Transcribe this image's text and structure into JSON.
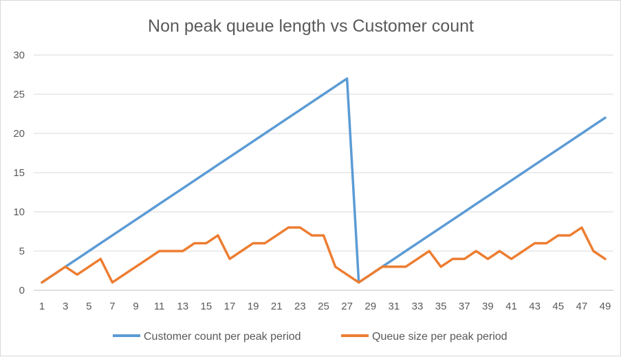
{
  "chart_data": {
    "type": "line",
    "title": "Non peak queue length vs Customer count",
    "xlabel": "",
    "ylabel": "",
    "x": [
      1,
      2,
      3,
      4,
      5,
      6,
      7,
      8,
      9,
      10,
      11,
      12,
      13,
      14,
      15,
      16,
      17,
      18,
      19,
      20,
      21,
      22,
      23,
      24,
      25,
      26,
      27,
      28,
      29,
      30,
      31,
      32,
      33,
      34,
      35,
      36,
      37,
      38,
      39,
      40,
      41,
      42,
      43,
      44,
      45,
      46,
      47,
      48,
      49
    ],
    "x_tick_labels": [
      "1",
      "3",
      "5",
      "7",
      "9",
      "11",
      "13",
      "15",
      "17",
      "19",
      "21",
      "23",
      "25",
      "27",
      "29",
      "31",
      "33",
      "35",
      "37",
      "39",
      "41",
      "43",
      "45",
      "47",
      "49"
    ],
    "ylim": [
      0,
      30
    ],
    "y_ticks": [
      0,
      5,
      10,
      15,
      20,
      25,
      30
    ],
    "grid": true,
    "legend_position": "bottom",
    "series": [
      {
        "name": "Customer count per peak period",
        "color": "#5b9bd5",
        "values": [
          1,
          2,
          3,
          4,
          5,
          6,
          7,
          8,
          9,
          10,
          11,
          12,
          13,
          14,
          15,
          16,
          17,
          18,
          19,
          20,
          21,
          22,
          23,
          24,
          25,
          26,
          27,
          1,
          2,
          3,
          4,
          5,
          6,
          7,
          8,
          9,
          10,
          11,
          12,
          13,
          14,
          15,
          16,
          17,
          18,
          19,
          20,
          21,
          22
        ]
      },
      {
        "name": "Queue size per peak period",
        "color": "#ed7d31",
        "values": [
          1,
          2,
          3,
          2,
          3,
          4,
          1,
          2,
          3,
          4,
          5,
          5,
          5,
          6,
          6,
          7,
          4,
          5,
          6,
          6,
          7,
          8,
          8,
          7,
          7,
          3,
          2,
          1,
          2,
          3,
          3,
          3,
          4,
          5,
          3,
          4,
          4,
          5,
          4,
          5,
          4,
          5,
          6,
          6,
          7,
          7,
          8,
          5,
          4
        ]
      }
    ]
  }
}
